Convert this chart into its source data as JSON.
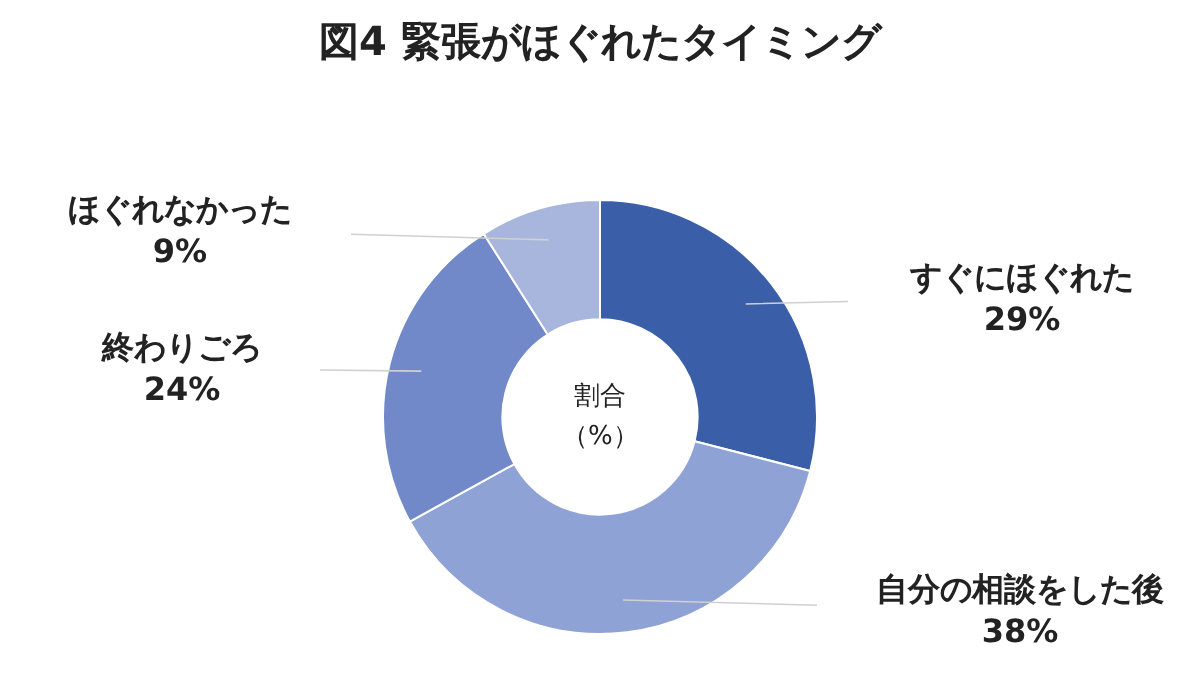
{
  "chart_data": {
    "type": "donut",
    "title": "図4 緊張がほぐれたタイミング",
    "categories": [
      "すぐにほぐれた",
      "自分の相談をした後",
      "終わりごろ",
      "ほぐれなかった"
    ],
    "values": [
      29,
      38,
      24,
      9
    ],
    "value_labels": [
      "29%",
      "38%",
      "24%",
      "9%"
    ],
    "colors": [
      "#3b5ea8",
      "#8ea2d5",
      "#7189c8",
      "#a8b5dc"
    ],
    "annotations": [
      "割合",
      "（%）"
    ],
    "legend": false
  }
}
